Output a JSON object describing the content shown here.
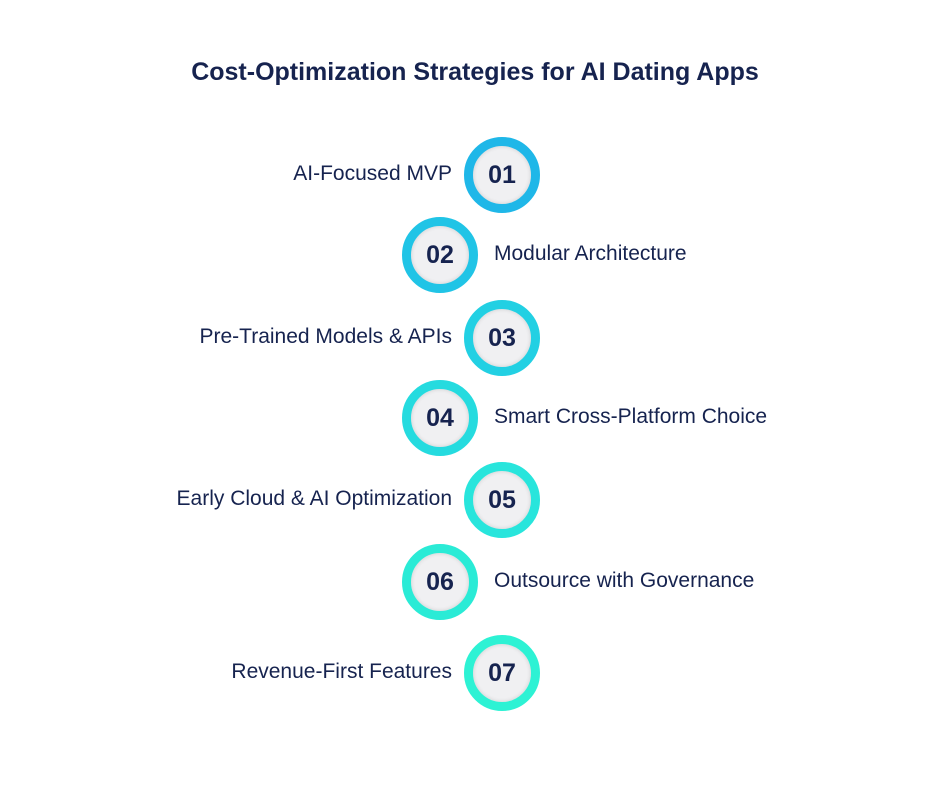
{
  "title": "Cost-Optimization Strategies for AI Dating Apps",
  "steps": [
    {
      "number": "01",
      "label": "AI-Focused MVP",
      "side": "left",
      "color": "#1fb7e8"
    },
    {
      "number": "02",
      "label": "Modular Architecture",
      "side": "right",
      "color": "#20c4e6"
    },
    {
      "number": "03",
      "label": "Pre-Trained Models & APIs",
      "side": "left",
      "color": "#22d0e3"
    },
    {
      "number": "04",
      "label": "Smart Cross-Platform Choice",
      "side": "right",
      "color": "#25dbdf"
    },
    {
      "number": "05",
      "label": "Early Cloud & AI Optimization",
      "side": "left",
      "color": "#28e5dc"
    },
    {
      "number": "06",
      "label": "Outsource with Governance",
      "side": "right",
      "color": "#2aebd6"
    },
    {
      "number": "07",
      "label": "Revenue-First Features",
      "side": "left",
      "color": "#2df2d4"
    }
  ]
}
